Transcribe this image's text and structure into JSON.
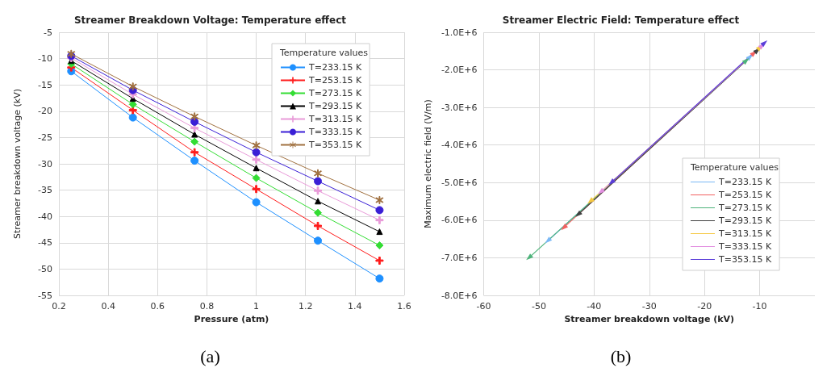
{
  "chart_data": [
    {
      "type": "line",
      "title": "Streamer Breakdown Voltage: Temperature effect",
      "xlabel": "Pressure (atm)",
      "ylabel": "Streamer breakdown voltage (kV)",
      "legend_title": "Temperature values",
      "legend": "top right",
      "grid": true,
      "annotations": [
        "(a)"
      ],
      "x": [
        0.25,
        0.5,
        0.75,
        1,
        1.25,
        1.5
      ],
      "xlim": [
        0.2,
        1.6
      ],
      "xticks": [
        0.2,
        0.4,
        0.6,
        0.8,
        1,
        1.2,
        1.4,
        1.6
      ],
      "ylim": [
        -55,
        -5
      ],
      "yticks": [
        -55,
        -50,
        -45,
        -40,
        -35,
        -30,
        -25,
        -20,
        -15,
        -10,
        -5
      ],
      "series": [
        {
          "name": "T=233.15 K",
          "color": "#1e90ff",
          "marker": "circle",
          "values": [
            -12.4,
            -21.2,
            -29.4,
            -37.3,
            -44.6,
            -51.8
          ]
        },
        {
          "name": "T=253.15 K",
          "color": "#ff1a1a",
          "marker": "cross",
          "values": [
            -11.7,
            -19.8,
            -27.8,
            -34.8,
            -41.8,
            -48.4
          ]
        },
        {
          "name": "T=273.15 K",
          "color": "#33dd33",
          "marker": "diamond",
          "values": [
            -11.0,
            -18.7,
            -25.8,
            -32.7,
            -39.3,
            -45.5
          ]
        },
        {
          "name": "T=293.15 K",
          "color": "#000000",
          "marker": "triangle",
          "values": [
            -10.4,
            -17.6,
            -24.4,
            -30.8,
            -37.1,
            -42.9
          ]
        },
        {
          "name": "T=313.15 K",
          "color": "#e89ad8",
          "marker": "cross",
          "values": [
            -9.9,
            -16.8,
            -23.2,
            -29.2,
            -35.1,
            -40.7
          ]
        },
        {
          "name": "T=333.15 K",
          "color": "#3a1fd6",
          "marker": "circle",
          "values": [
            -9.5,
            -16.0,
            -22.0,
            -27.8,
            -33.3,
            -38.8
          ]
        },
        {
          "name": "T=353.15 K",
          "color": "#a0703f",
          "marker": "star",
          "values": [
            -9.1,
            -15.3,
            -21.0,
            -26.5,
            -31.8,
            -36.9
          ]
        }
      ]
    },
    {
      "type": "line",
      "title": "Streamer Electric Field: Temperature effect",
      "xlabel": "Streamer breakdown voltage (kV)",
      "ylabel": "Maximum electric field (V/m)",
      "legend_title": "Temperature values",
      "legend": "bottom right",
      "grid": true,
      "marker": "triangle",
      "annotations": [
        "(b)"
      ],
      "xlim": [
        -60,
        0
      ],
      "xticks": [
        -60,
        -50,
        -40,
        -30,
        -20,
        -10
      ],
      "ylim": [
        -8000000,
        -1000000
      ],
      "yticks": [
        {
          "value": -8000000,
          "label": "-8.0E+6"
        },
        {
          "value": -7000000,
          "label": "-7.0E+6"
        },
        {
          "value": -6000000,
          "label": "-6.0E+6"
        },
        {
          "value": -5000000,
          "label": "-5.0E+6"
        },
        {
          "value": -4000000,
          "label": "-4.0E+6"
        },
        {
          "value": -3000000,
          "label": "-3.0E+6"
        },
        {
          "value": -2000000,
          "label": "-2.0E+6"
        },
        {
          "value": -1000000,
          "label": "-1.0E+6"
        }
      ],
      "series": [
        {
          "name": "T=233.15 K",
          "color": "#7ab8f5",
          "x": [
            -11.7,
            -48.4
          ],
          "values": [
            -1650000,
            -6550000
          ]
        },
        {
          "name": "T=253.15 K",
          "color": "#f26060",
          "x": [
            -11.0,
            -45.5
          ],
          "values": [
            -1550000,
            -6200000
          ]
        },
        {
          "name": "T=273.15 K",
          "color": "#4db37a",
          "x": [
            -12.4,
            -51.8
          ],
          "values": [
            -1750000,
            -7000000
          ]
        },
        {
          "name": "T=293.15 K",
          "color": "#404040",
          "x": [
            -10.4,
            -42.9
          ],
          "values": [
            -1480000,
            -5850000
          ]
        },
        {
          "name": "T=313.15 K",
          "color": "#f5c842",
          "x": [
            -9.9,
            -40.7
          ],
          "values": [
            -1400000,
            -5500000
          ]
        },
        {
          "name": "T=333.15 K",
          "color": "#e28fe0",
          "x": [
            -9.5,
            -38.8
          ],
          "values": [
            -1350000,
            -5250000
          ]
        },
        {
          "name": "T=353.15 K",
          "color": "#5b3fd9",
          "x": [
            -9.1,
            -36.9
          ],
          "values": [
            -1280000,
            -5000000
          ]
        }
      ]
    }
  ]
}
